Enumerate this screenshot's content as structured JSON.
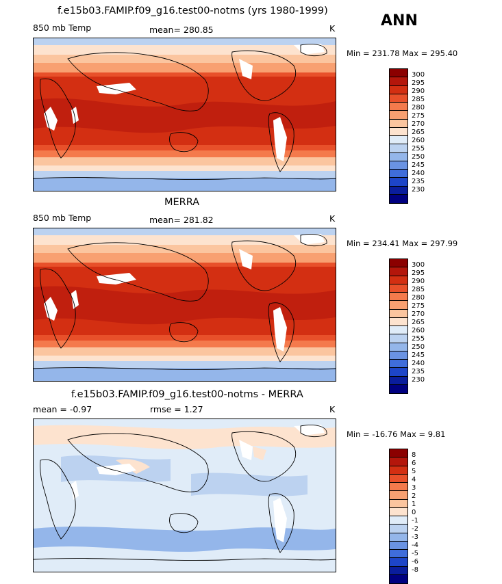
{
  "season": "ANN",
  "panels": [
    {
      "title": "f.e15b03.FAMIP.f09_g16.test00-notms (yrs 1980-1999)",
      "left_label": "850 mb Temp",
      "stat_label": "mean= 280.85",
      "unit": "K",
      "minmax": "Min = 231.78 Max = 295.40"
    },
    {
      "title": "MERRA",
      "left_label": "850 mb Temp",
      "stat_label": "mean= 281.82",
      "unit": "K",
      "minmax": "Min = 234.41 Max = 297.99"
    },
    {
      "title": "f.e15b03.FAMIP.f09_g16.test00-notms - MERRA",
      "left_label": "mean =   -0.97",
      "stat_label": "rmse =    1.27",
      "unit": "K",
      "minmax": "Min = -16.76 Max =   9.81"
    }
  ],
  "colorbars": {
    "abs": {
      "labels": [
        "300",
        "295",
        "290",
        "285",
        "280",
        "275",
        "270",
        "265",
        "260",
        "255",
        "250",
        "245",
        "240",
        "235",
        "230"
      ],
      "colors": [
        "#8b0000",
        "#b4160b",
        "#d32f12",
        "#e8502a",
        "#f47a4c",
        "#f8a071",
        "#fbc59f",
        "#fde3cf",
        "#e0ecf8",
        "#bcd2f0",
        "#94b6ea",
        "#6a93e3",
        "#3f6ddb",
        "#1d45c8",
        "#0a1d9c",
        "#000080"
      ]
    },
    "diff": {
      "labels": [
        "8",
        "6",
        "5",
        "4",
        "3",
        "2",
        "1",
        "0",
        "-1",
        "-2",
        "-3",
        "-4",
        "-5",
        "-6",
        "-8"
      ],
      "colors": [
        "#8b0000",
        "#b4160b",
        "#d32f12",
        "#e8502a",
        "#f47a4c",
        "#f8a071",
        "#fbc59f",
        "#fde3cf",
        "#e0ecf8",
        "#bcd2f0",
        "#94b6ea",
        "#6a93e3",
        "#3f6ddb",
        "#1d45c8",
        "#0a1d9c",
        "#000080"
      ]
    }
  }
}
